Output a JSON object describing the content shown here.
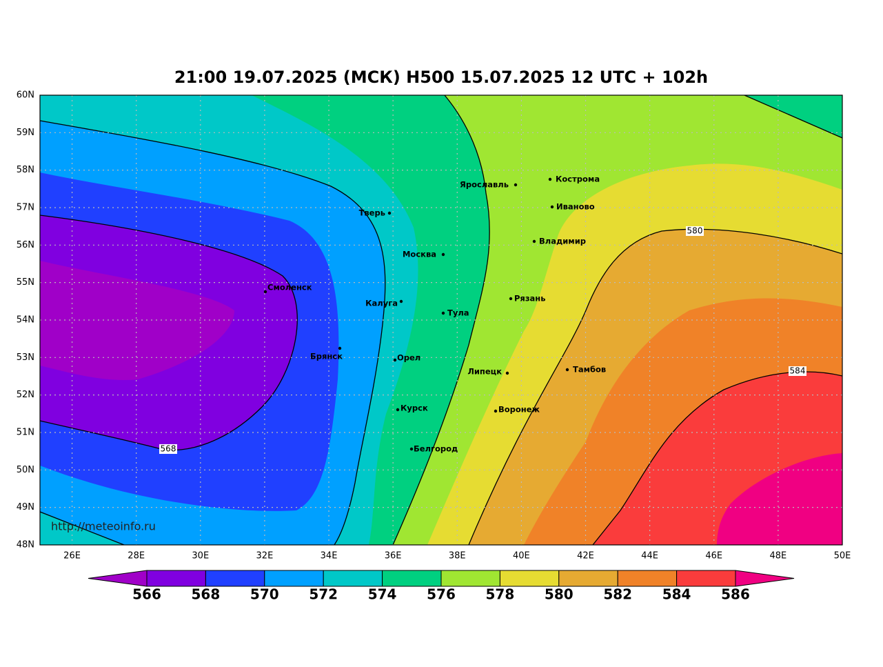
{
  "title": "21:00 19.07.2025 (МСК) H500  15.07.2025 12 UTC + 102h",
  "lat_ticks": [
    "60N",
    "59N",
    "58N",
    "57N",
    "56N",
    "55N",
    "54N",
    "53N",
    "52N",
    "51N",
    "50N",
    "49N",
    "48N"
  ],
  "lon_ticks": [
    "26E",
    "28E",
    "30E",
    "32E",
    "34E",
    "36E",
    "38E",
    "40E",
    "42E",
    "44E",
    "46E",
    "48E",
    "50E"
  ],
  "cities": [
    {
      "name": "Ярославль"
    },
    {
      "name": "Кострома"
    },
    {
      "name": "Иваново"
    },
    {
      "name": "Тверь"
    },
    {
      "name": "Владимир"
    },
    {
      "name": "Москва"
    },
    {
      "name": "Смоленск"
    },
    {
      "name": "Калуга"
    },
    {
      "name": "Рязань"
    },
    {
      "name": "Тула"
    },
    {
      "name": "Брянск"
    },
    {
      "name": "Орел"
    },
    {
      "name": "Липецк"
    },
    {
      "name": "Тамбов"
    },
    {
      "name": "Курск"
    },
    {
      "name": "Воронеж"
    },
    {
      "name": "Белгород"
    }
  ],
  "contour_labels": [
    568,
    580,
    584
  ],
  "watermark": "http://meteoinfo.ru",
  "colorbar": {
    "labels": [
      566,
      568,
      570,
      572,
      574,
      576,
      578,
      580,
      582,
      584,
      586
    ],
    "colors": [
      "#a000c8",
      "#8000e0",
      "#2040ff",
      "#00a0ff",
      "#00c8c8",
      "#00d080",
      "#a0e632",
      "#e6dc32",
      "#e6aa32",
      "#f08228",
      "#fa3c3c",
      "#f00082"
    ]
  }
}
